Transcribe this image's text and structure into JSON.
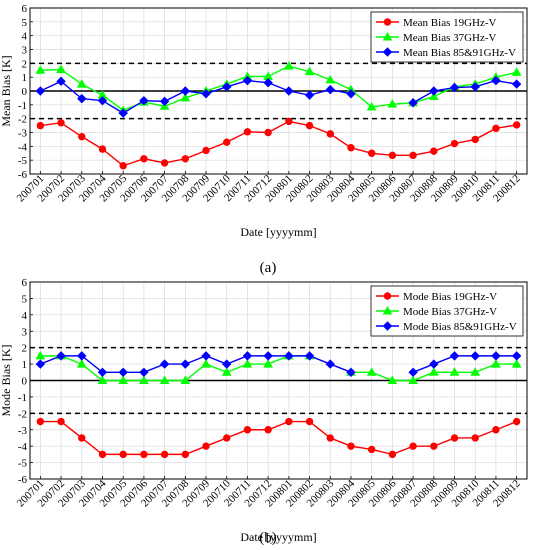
{
  "chart_data": [
    {
      "type": "line",
      "panel_label": "(a)",
      "title": "",
      "xlabel": "Date [yyyymm]",
      "ylabel": "Mean Bias [K]",
      "ylim": [
        -6,
        6
      ],
      "yticks": [
        -6,
        -5,
        -4,
        -3,
        -2,
        -1,
        0,
        1,
        2,
        3,
        4,
        5,
        6
      ],
      "grid": true,
      "legend_position": "top-right",
      "reference_lines": [
        {
          "y": 0,
          "style": "solid"
        },
        {
          "y": 2,
          "style": "dashed"
        },
        {
          "y": -2,
          "style": "dashed"
        }
      ],
      "x": [
        "200701",
        "200702",
        "200703",
        "200704",
        "200705",
        "200706",
        "200707",
        "200708",
        "200709",
        "200710",
        "200711",
        "200712",
        "200801",
        "200802",
        "200803",
        "200804",
        "200805",
        "200806",
        "200807",
        "200808",
        "200809",
        "200810",
        "200811",
        "200812"
      ],
      "series": [
        {
          "name": "Mean Bias 19GHz-V",
          "color": "#ff0000",
          "marker": "circle",
          "values": [
            -2.5,
            -2.3,
            -3.3,
            -4.2,
            -5.4,
            -4.9,
            -5.2,
            -4.9,
            -4.3,
            -3.7,
            -2.95,
            -3.0,
            -2.2,
            -2.5,
            -3.1,
            -4.1,
            -4.5,
            -4.65,
            -4.65,
            -4.35,
            -3.8,
            -3.5,
            -2.7,
            -2.45
          ]
        },
        {
          "name": "Mean Bias 37GHz-V",
          "color": "#00ff00",
          "marker": "triangle",
          "values": [
            1.5,
            1.55,
            0.5,
            -0.3,
            -1.4,
            -0.8,
            -1.1,
            -0.5,
            0.0,
            0.5,
            1.05,
            1.05,
            1.8,
            1.4,
            0.8,
            0.1,
            -1.15,
            -0.95,
            -0.85,
            -0.4,
            0.3,
            0.5,
            1.0,
            1.35
          ]
        },
        {
          "name": "Mean Bias 85&91GHz-V",
          "color": "#0000ff",
          "marker": "diamond",
          "values": [
            0.0,
            0.7,
            -0.55,
            -0.7,
            -1.6,
            -0.7,
            -0.75,
            0.0,
            -0.2,
            0.3,
            0.75,
            0.6,
            0.0,
            -0.3,
            0.1,
            -0.2,
            null,
            null,
            -0.85,
            0.0,
            0.25,
            0.3,
            0.75,
            0.5
          ]
        }
      ]
    },
    {
      "type": "line",
      "panel_label": "(b)",
      "title": "",
      "xlabel": "Date [yyyymm]",
      "ylabel": "Mode Bias [K]",
      "ylim": [
        -6,
        6
      ],
      "yticks": [
        -6,
        -5,
        -4,
        -3,
        -2,
        -1,
        0,
        1,
        2,
        3,
        4,
        5,
        6
      ],
      "grid": true,
      "legend_position": "top-right",
      "reference_lines": [
        {
          "y": 0,
          "style": "solid"
        },
        {
          "y": 2,
          "style": "dashed"
        },
        {
          "y": -2,
          "style": "dashed"
        }
      ],
      "x": [
        "200701",
        "200702",
        "200703",
        "200704",
        "200705",
        "200706",
        "200707",
        "200708",
        "200709",
        "200710",
        "200711",
        "200712",
        "200801",
        "200802",
        "200803",
        "200804",
        "200805",
        "200806",
        "200807",
        "200808",
        "200809",
        "200810",
        "200811",
        "200812"
      ],
      "series": [
        {
          "name": "Mode Bias 19GHz-V",
          "color": "#ff0000",
          "marker": "circle",
          "values": [
            -2.5,
            -2.5,
            -3.5,
            -4.5,
            -4.5,
            -4.5,
            -4.5,
            -4.5,
            -4.0,
            -3.5,
            -3.0,
            -3.0,
            -2.5,
            -2.5,
            -3.5,
            -4.0,
            -4.2,
            -4.5,
            -4.0,
            -4.0,
            -3.5,
            -3.5,
            -3.0,
            -2.5
          ]
        },
        {
          "name": "Mode Bias 37GHz-V",
          "color": "#00ff00",
          "marker": "triangle",
          "values": [
            1.5,
            1.5,
            1.0,
            0.0,
            0.0,
            0.0,
            0.0,
            0.0,
            1.0,
            0.5,
            1.0,
            1.0,
            1.5,
            1.5,
            null,
            0.5,
            0.5,
            0.0,
            0.0,
            0.5,
            0.5,
            0.5,
            1.0,
            1.0
          ]
        },
        {
          "name": "Mode Bias 85&91GHz-V",
          "color": "#0000ff",
          "marker": "diamond",
          "values": [
            1.0,
            1.5,
            1.5,
            0.5,
            0.5,
            0.5,
            1.0,
            1.0,
            1.5,
            1.0,
            1.5,
            1.5,
            1.5,
            1.5,
            1.0,
            0.5,
            null,
            null,
            0.5,
            1.0,
            1.5,
            1.5,
            1.5,
            1.5
          ]
        }
      ]
    }
  ]
}
